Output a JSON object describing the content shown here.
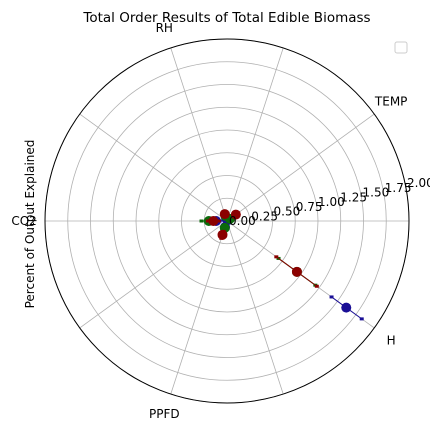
{
  "chart_data": {
    "type": "scatter",
    "projection": "polar",
    "title": "Total Order Results of Total Edible Biomass",
    "ylabel": "Percent of Output Explained",
    "angular_categories": [
      "TEMP",
      "RH",
      "CO2",
      "PPFD",
      "H"
    ],
    "category_angles_deg": [
      36,
      108,
      180,
      252,
      324
    ],
    "rlim": [
      0,
      2.0
    ],
    "r_ticks": [
      0.0,
      0.25,
      0.5,
      0.75,
      1.0,
      1.25,
      1.5,
      1.75,
      2.0
    ],
    "r_tick_labels": [
      "0.00",
      "0.25",
      "0.50",
      "0.75",
      "1.00",
      "1.25",
      "1.50",
      "1.75",
      "2.00"
    ],
    "r_label_angle_deg": 12,
    "grid": true,
    "legend": {
      "placement": "top-right",
      "entries": []
    },
    "series": [
      {
        "color": "#1a0f96",
        "points": [
          {
            "category": "TEMP",
            "value": 0.02,
            "lower": 0.01,
            "upper": 0.03
          },
          {
            "category": "RH",
            "value": 0.03,
            "lower": 0.02,
            "upper": 0.04
          },
          {
            "category": "CO2",
            "value": 0.12,
            "lower": 0.08,
            "upper": 0.16
          },
          {
            "category": "PPFD",
            "value": 0.07,
            "lower": 0.05,
            "upper": 0.09
          },
          {
            "category": "H",
            "value": 1.62,
            "lower": 1.42,
            "upper": 1.83
          }
        ]
      },
      {
        "color": "#0b6b0b",
        "points": [
          {
            "category": "TEMP",
            "value": 0.04,
            "lower": 0.02,
            "upper": 0.06
          },
          {
            "category": "RH",
            "value": 0.06,
            "lower": 0.04,
            "upper": 0.08
          },
          {
            "category": "CO2",
            "value": 0.2,
            "lower": 0.12,
            "upper": 0.28
          },
          {
            "category": "PPFD",
            "value": 0.08,
            "lower": 0.05,
            "upper": 0.11
          },
          {
            "category": "H",
            "value": 0.95,
            "lower": 0.7,
            "upper": 1.2
          }
        ]
      },
      {
        "color": "#8b0000",
        "points": [
          {
            "category": "TEMP",
            "value": 0.12,
            "lower": 0.09,
            "upper": 0.15
          },
          {
            "category": "RH",
            "value": 0.08,
            "lower": 0.06,
            "upper": 0.1
          },
          {
            "category": "CO2",
            "value": 0.15,
            "lower": 0.09,
            "upper": 0.21
          },
          {
            "category": "PPFD",
            "value": 0.16,
            "lower": 0.12,
            "upper": 0.2
          },
          {
            "category": "H",
            "value": 0.95,
            "lower": 0.67,
            "upper": 1.22
          }
        ]
      }
    ]
  }
}
